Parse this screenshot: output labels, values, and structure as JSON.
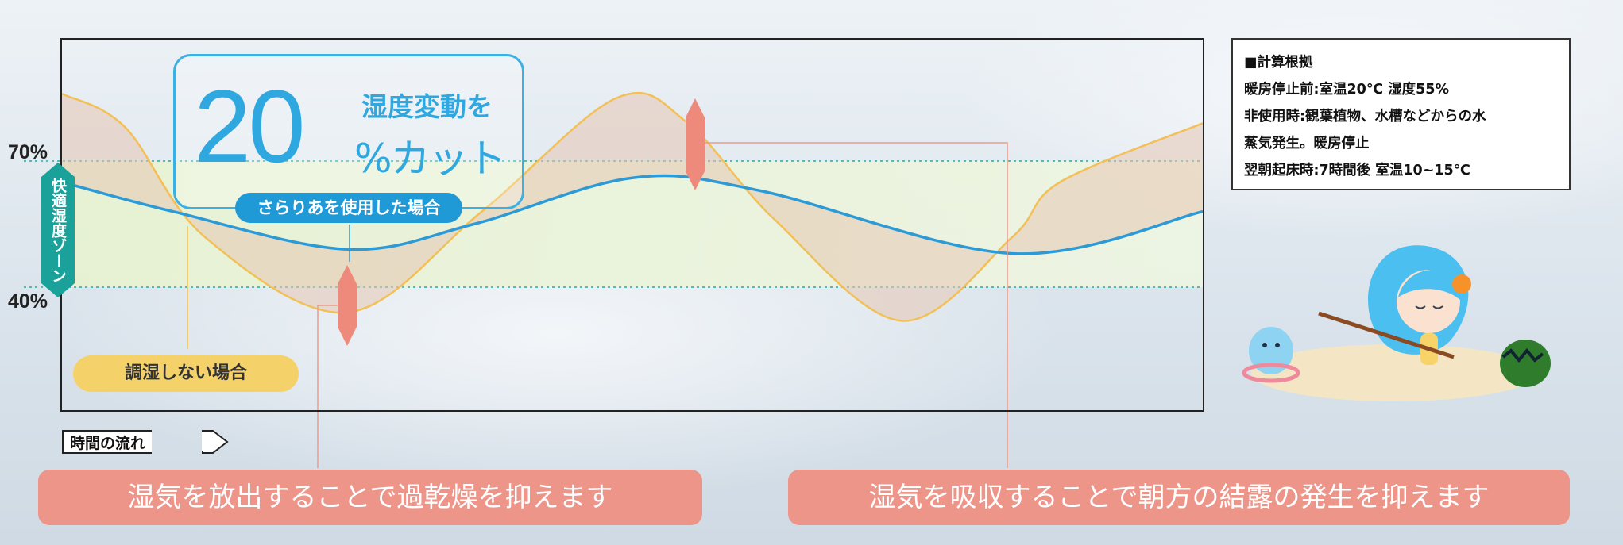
{
  "chart_data": {
    "type": "line",
    "x_axis_label": "時間の流れ",
    "y_ticks": [
      "70%",
      "40%"
    ],
    "comfort_zone_label": "快適湿度ゾーン",
    "series": [
      {
        "name": "調湿しない場合",
        "color": "#f2c056",
        "x": [
          0,
          80,
          180,
          360,
          530,
          700,
          790,
          900,
          1060,
          1200,
          1260,
          1440
        ],
        "values": [
          86,
          78,
          52,
          34,
          58,
          85,
          79,
          56,
          32,
          52,
          65,
          79
        ]
      },
      {
        "name": "さらりあを使用した場合",
        "color": "#2b9ad6",
        "x": [
          0,
          140,
          360,
          520,
          720,
          880,
          1200,
          1440
        ],
        "values": [
          65,
          58,
          49,
          55,
          66,
          63,
          48,
          58
        ]
      }
    ],
    "comfort_zone": [
      40,
      70
    ],
    "ylim": [
      0,
      100
    ]
  },
  "callout": {
    "number": "20",
    "head": "湿度変動を",
    "tail": "%カット",
    "pill": "さらりあを使用した場合"
  },
  "legend_no_control": "調湿しない場合",
  "info": {
    "title": "■計算根拠",
    "lines": [
      "暖房停止前:室温20℃ 湿度55%",
      "非使用時:観葉植物、水槽などからの水",
      "蒸気発生。暖房停止",
      "翌朝起床時:7時間後 室温10~15℃"
    ]
  },
  "banners": {
    "left": "湿気を放出することで過乾燥を抑えます",
    "right": "湿気を吸収することで朝方の結露の発生を抑えます"
  },
  "colors": {
    "accent_blue": "#2fa8e0",
    "zone_green": "#e8f3d6",
    "zone_tag": "#1aa29a",
    "banner": "#ee958a",
    "fill_between": "#e6c7b3",
    "arrow": "#ee8a7c"
  }
}
